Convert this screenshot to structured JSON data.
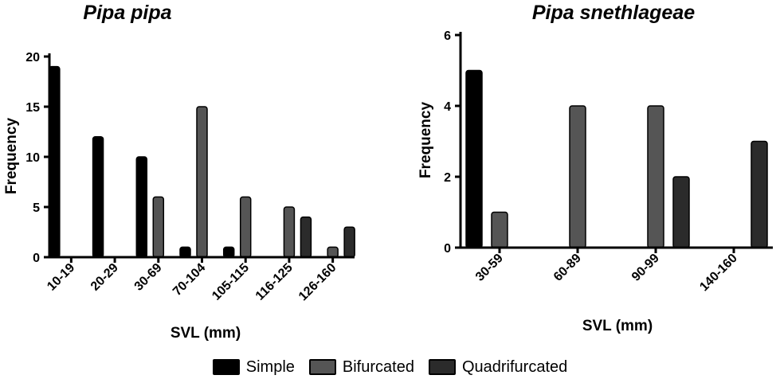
{
  "legend": {
    "items": [
      {
        "label": "Simple",
        "color": "#000000"
      },
      {
        "label": "Bifurcated",
        "color": "#555555"
      },
      {
        "label": "Quadrifurcated",
        "color": "#2b2b2b"
      }
    ]
  },
  "chart_data": [
    {
      "type": "bar",
      "title": "Pipa pipa",
      "xlabel": "SVL  (mm)",
      "ylabel": "Frequency",
      "ylim": [
        0,
        20
      ],
      "yticks": [
        0,
        5,
        10,
        15,
        20
      ],
      "categories": [
        "10-19",
        "20-29",
        "30-69",
        "70-104",
        "105-115",
        "116-125",
        "126-160"
      ],
      "series": [
        {
          "name": "Simple",
          "values": [
            19,
            12,
            10,
            1,
            1,
            0,
            0
          ]
        },
        {
          "name": "Bifurcated",
          "values": [
            0,
            0,
            6,
            15,
            6,
            5,
            1
          ]
        },
        {
          "name": "Quadrifurcated",
          "values": [
            0,
            0,
            0,
            0,
            0,
            4,
            3
          ]
        }
      ]
    },
    {
      "type": "bar",
      "title": "Pipa snethlageae",
      "xlabel": "SVL  (mm)",
      "ylabel": "Frequency",
      "ylim": [
        0,
        6
      ],
      "yticks": [
        0,
        2,
        4,
        6
      ],
      "categories": [
        "30-59",
        "60-89",
        "90-99",
        "140-160"
      ],
      "series": [
        {
          "name": "Simple",
          "values": [
            5,
            0,
            0,
            0
          ]
        },
        {
          "name": "Bifurcated",
          "values": [
            1,
            4,
            4,
            0
          ]
        },
        {
          "name": "Quadrifurcated",
          "values": [
            0,
            0,
            2,
            3
          ]
        }
      ]
    }
  ]
}
